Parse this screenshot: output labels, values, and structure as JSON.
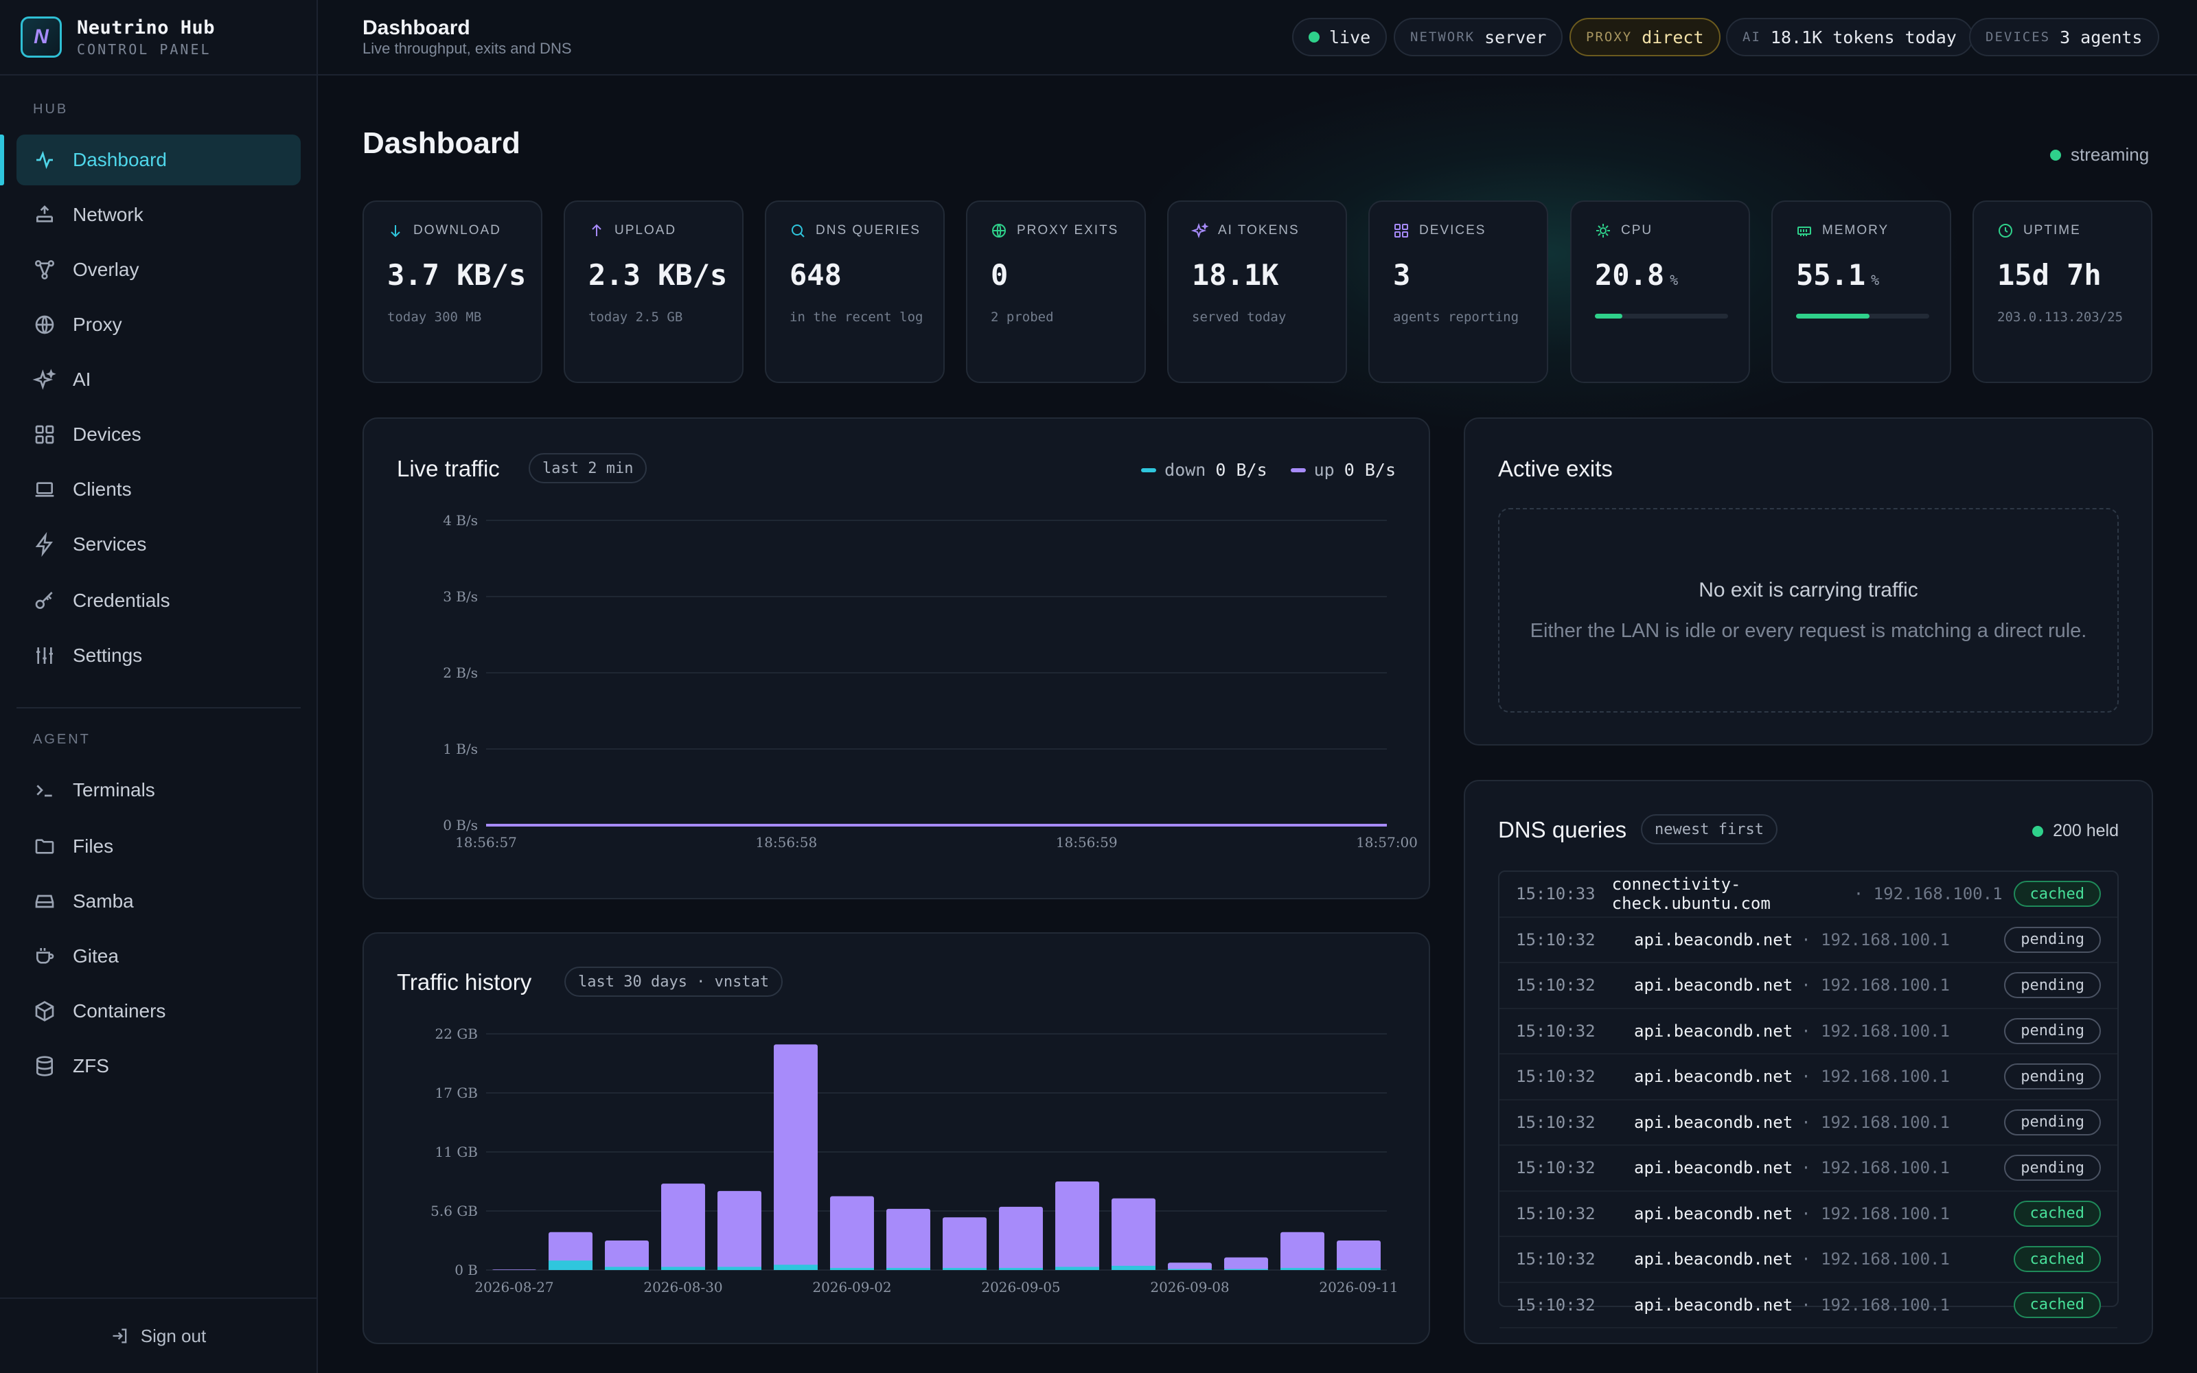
{
  "brand": {
    "name": "Neutrino Hub",
    "subtitle": "CONTROL PANEL",
    "logo_letter": "N"
  },
  "sidebar": {
    "hub_label": "HUB",
    "hub_items": [
      {
        "label": "Dashboard",
        "icon": "activity-icon",
        "active": true
      },
      {
        "label": "Network",
        "icon": "upload-tray-icon"
      },
      {
        "label": "Overlay",
        "icon": "share-nodes-icon"
      },
      {
        "label": "Proxy",
        "icon": "globe-icon"
      },
      {
        "label": "AI",
        "icon": "sparkles-icon"
      },
      {
        "label": "Devices",
        "icon": "grid-icon"
      },
      {
        "label": "Clients",
        "icon": "laptop-icon"
      },
      {
        "label": "Services",
        "icon": "bolt-icon"
      },
      {
        "label": "Credentials",
        "icon": "key-icon"
      },
      {
        "label": "Settings",
        "icon": "sliders-icon"
      }
    ],
    "agent_label": "AGENT",
    "agent_items": [
      {
        "label": "Terminals",
        "icon": "terminal-icon"
      },
      {
        "label": "Files",
        "icon": "folder-icon"
      },
      {
        "label": "Samba",
        "icon": "drive-icon"
      },
      {
        "label": "Gitea",
        "icon": "cup-icon"
      },
      {
        "label": "Containers",
        "icon": "box-icon"
      },
      {
        "label": "ZFS",
        "icon": "database-icon"
      }
    ],
    "signout": "Sign out"
  },
  "topbar": {
    "title": "Dashboard",
    "subtitle": "Live throughput, exits and DNS",
    "status": "live",
    "network_key": "NETWORK",
    "network_val": "server",
    "proxy_key": "PROXY",
    "proxy_val": "direct",
    "ai_key": "AI",
    "ai_val": "18.1K tokens today",
    "devices_key": "DEVICES",
    "devices_val": "3 agents",
    "status_color": "#2fd18b"
  },
  "main": {
    "title": "Dashboard",
    "streaming": "streaming",
    "stats": [
      {
        "label": "DOWNLOAD",
        "icon": "arrow-down-icon",
        "value": "3.7 KB/s",
        "sub": "today 300 MB"
      },
      {
        "label": "UPLOAD",
        "icon": "arrow-up-icon",
        "value": "2.3 KB/s",
        "sub": "today 2.5 GB"
      },
      {
        "label": "DNS QUERIES",
        "icon": "search-icon",
        "value": "648",
        "sub": "in the recent log"
      },
      {
        "label": "PROXY EXITS",
        "icon": "globe-icon",
        "value": "0",
        "sub": "2 probed"
      },
      {
        "label": "AI TOKENS",
        "icon": "sparkles-icon",
        "value": "18.1K",
        "sub": "served today"
      },
      {
        "label": "DEVICES",
        "icon": "grid-icon",
        "value": "3",
        "sub": "agents reporting"
      },
      {
        "label": "CPU",
        "icon": "cpu-icon",
        "value": "20.8",
        "unit": "%",
        "bar": 0.208
      },
      {
        "label": "MEMORY",
        "icon": "memory-icon",
        "value": "55.1",
        "unit": "%",
        "bar": 0.551
      },
      {
        "label": "UPTIME",
        "icon": "clock-icon",
        "value": "15d 7h",
        "sub": "203.0.113.203/25"
      }
    ]
  },
  "live_traffic": {
    "title": "Live traffic",
    "tag": "last 2 min",
    "legend_down": "down",
    "legend_down_val": "0 B/s",
    "legend_up": "up",
    "legend_up_val": "0 B/s",
    "down_color": "#2fc6dd",
    "up_color": "#a78bfa"
  },
  "traffic_history": {
    "title": "Traffic history",
    "tag": "last 30 days · vnstat"
  },
  "active_exits": {
    "title": "Active exits",
    "empty_title": "No exit is carrying traffic",
    "empty_sub": "Either the LAN is idle or every request is matching a direct rule."
  },
  "dns": {
    "title": "DNS queries",
    "tag": "newest first",
    "held": "200 held",
    "rows": [
      {
        "time": "15:10:33",
        "host": "connectivity-check.ubuntu.com",
        "ip": "192.168.100.1",
        "status": "cached"
      },
      {
        "time": "15:10:32",
        "host": "api.beacondb.net",
        "ip": "192.168.100.1",
        "status": "pending"
      },
      {
        "time": "15:10:32",
        "host": "api.beacondb.net",
        "ip": "192.168.100.1",
        "status": "pending"
      },
      {
        "time": "15:10:32",
        "host": "api.beacondb.net",
        "ip": "192.168.100.1",
        "status": "pending"
      },
      {
        "time": "15:10:32",
        "host": "api.beacondb.net",
        "ip": "192.168.100.1",
        "status": "pending"
      },
      {
        "time": "15:10:32",
        "host": "api.beacondb.net",
        "ip": "192.168.100.1",
        "status": "pending"
      },
      {
        "time": "15:10:32",
        "host": "api.beacondb.net",
        "ip": "192.168.100.1",
        "status": "pending"
      },
      {
        "time": "15:10:32",
        "host": "api.beacondb.net",
        "ip": "192.168.100.1",
        "status": "cached"
      },
      {
        "time": "15:10:32",
        "host": "api.beacondb.net",
        "ip": "192.168.100.1",
        "status": "cached"
      },
      {
        "time": "15:10:32",
        "host": "api.beacondb.net",
        "ip": "192.168.100.1",
        "status": "cached"
      }
    ]
  },
  "chart_data": [
    {
      "type": "line",
      "ylabels": [
        "0 B/s",
        "1 B/s",
        "2 B/s",
        "3 B/s",
        "4 B/s"
      ],
      "ylim": [
        0,
        4
      ],
      "xlabels": [
        "18:56:57",
        "18:56:58",
        "18:56:59",
        "18:57:00"
      ],
      "series": [
        {
          "name": "down",
          "values": [
            0,
            0,
            0,
            0
          ]
        },
        {
          "name": "up",
          "values": [
            0,
            0,
            0,
            0
          ]
        }
      ]
    },
    {
      "type": "bar",
      "ylabels": [
        "0 B",
        "5.6 GB",
        "11 GB",
        "17 GB",
        "22 GB"
      ],
      "ylim": [
        0,
        22.4
      ],
      "xlabels": [
        "2026-08-27",
        "2026-08-30",
        "2026-09-02",
        "2026-09-05",
        "2026-09-08",
        "2026-09-11"
      ],
      "categories": [
        "2026-08-27",
        "2026-08-28",
        "2026-08-29",
        "2026-08-30",
        "2026-08-31",
        "2026-09-01",
        "2026-09-02",
        "2026-09-03",
        "2026-09-04",
        "2026-09-05",
        "2026-09-06",
        "2026-09-07",
        "2026-09-08",
        "2026-09-09",
        "2026-09-10",
        "2026-09-11"
      ],
      "series": [
        {
          "name": "up",
          "values": [
            0.05,
            3.6,
            2.8,
            8.2,
            7.5,
            21.4,
            7.0,
            5.8,
            5.0,
            6.0,
            8.4,
            6.8,
            0.7,
            1.2,
            3.6,
            2.8
          ]
        },
        {
          "name": "down",
          "values": [
            0,
            0.9,
            0.3,
            0.3,
            0.3,
            0.5,
            0.2,
            0.2,
            0.2,
            0.2,
            0.3,
            0.4,
            0.1,
            0.1,
            0.2,
            0.2
          ]
        }
      ]
    }
  ]
}
